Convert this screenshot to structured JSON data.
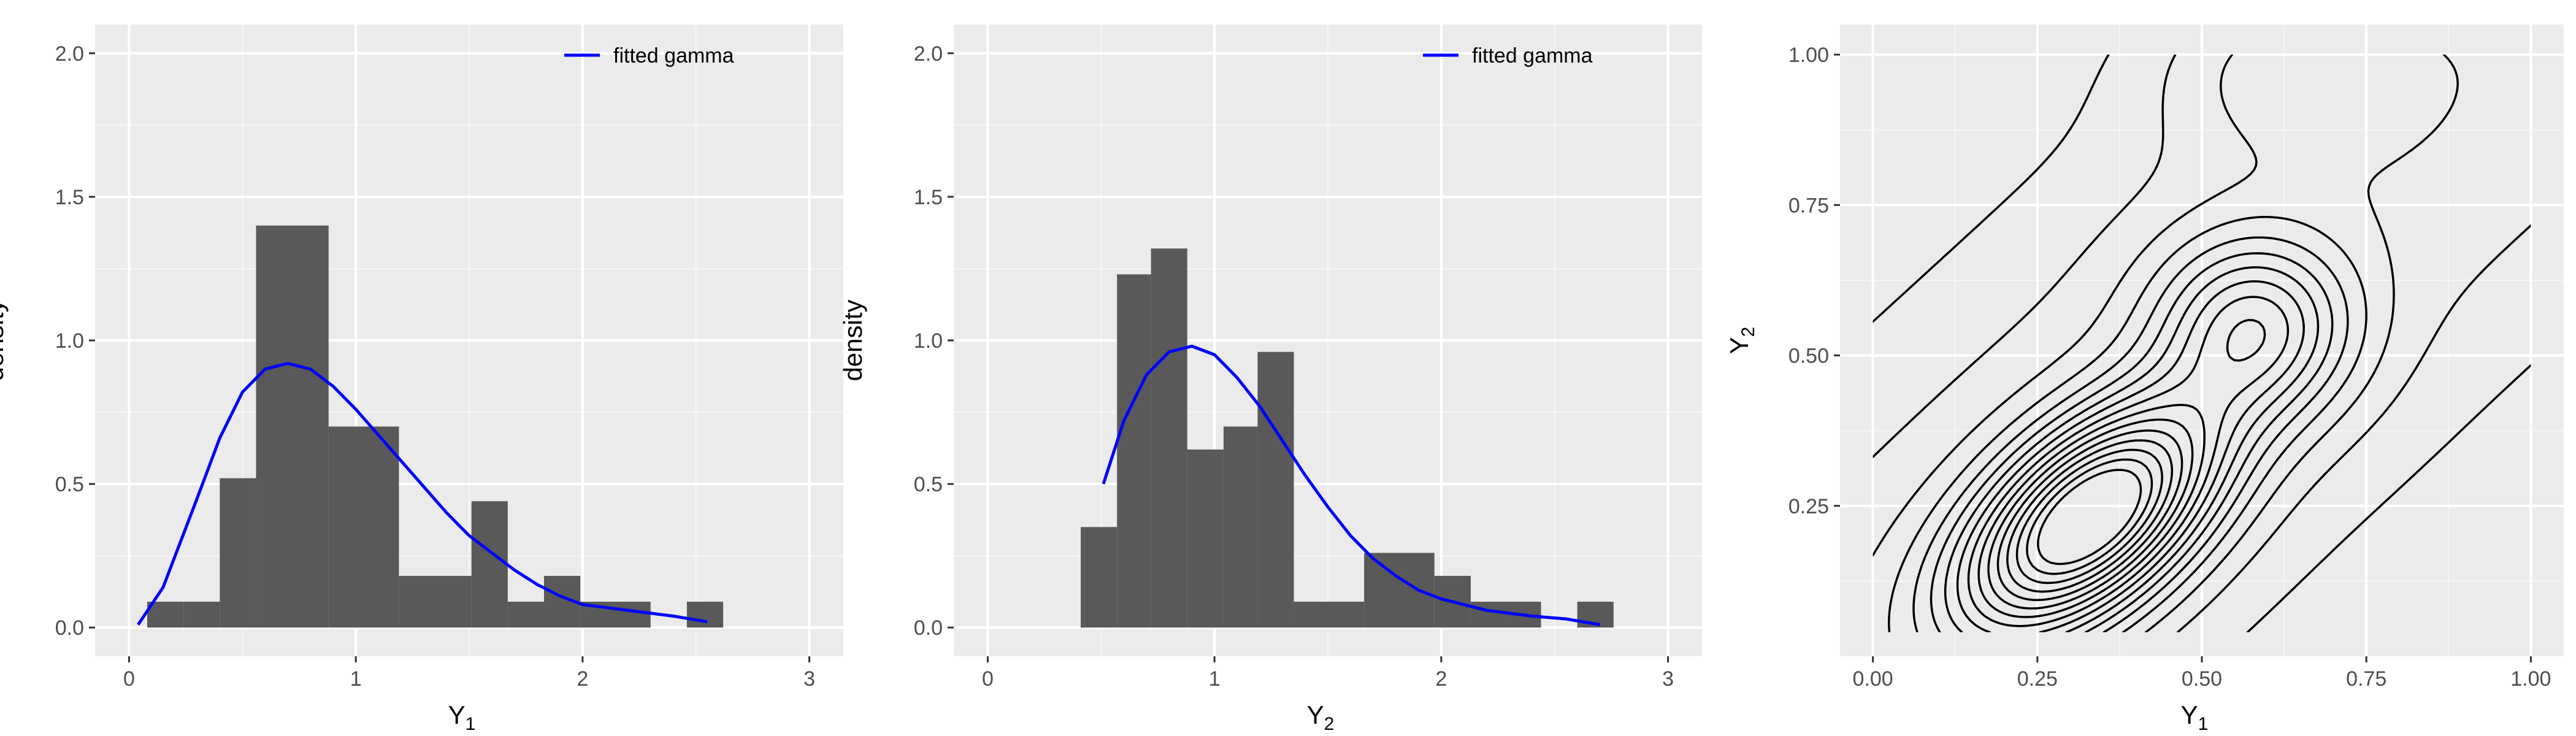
{
  "chart_data": [
    {
      "type": "bar",
      "panel": "left",
      "xlabel_base": "Y",
      "xlabel_sub": "1",
      "ylabel": "density",
      "xlim": [
        -0.15,
        3.15
      ],
      "ylim": [
        -0.1,
        2.1
      ],
      "x_ticks": [
        0,
        1,
        2,
        3
      ],
      "y_ticks": [
        0.0,
        0.5,
        1.0,
        1.5,
        2.0
      ],
      "y_tick_labels": [
        "0.0",
        "0.5",
        "1.0",
        "1.5",
        "2.0"
      ],
      "legend": {
        "label": "fitted gamma",
        "placement": "top-right",
        "color": "#0000ff"
      },
      "bar_color": "#595959",
      "histogram": [
        {
          "x0": 0.08,
          "x1": 0.24,
          "density": 0.09
        },
        {
          "x0": 0.24,
          "x1": 0.4,
          "density": 0.09
        },
        {
          "x0": 0.4,
          "x1": 0.56,
          "density": 0.52
        },
        {
          "x0": 0.56,
          "x1": 0.88,
          "density": 1.4
        },
        {
          "x0": 0.88,
          "x1": 1.19,
          "density": 0.7
        },
        {
          "x0": 1.19,
          "x1": 1.51,
          "density": 0.18
        },
        {
          "x0": 1.51,
          "x1": 1.67,
          "density": 0.44
        },
        {
          "x0": 1.67,
          "x1": 1.83,
          "density": 0.09
        },
        {
          "x0": 1.83,
          "x1": 1.99,
          "density": 0.18
        },
        {
          "x0": 1.99,
          "x1": 2.3,
          "density": 0.09
        },
        {
          "x0": 2.46,
          "x1": 2.62,
          "density": 0.09
        }
      ],
      "fitted_curve": [
        [
          0.04,
          0.01
        ],
        [
          0.15,
          0.14
        ],
        [
          0.3,
          0.45
        ],
        [
          0.4,
          0.66
        ],
        [
          0.5,
          0.82
        ],
        [
          0.6,
          0.9
        ],
        [
          0.7,
          0.92
        ],
        [
          0.8,
          0.9
        ],
        [
          0.9,
          0.84
        ],
        [
          1.0,
          0.76
        ],
        [
          1.1,
          0.67
        ],
        [
          1.2,
          0.58
        ],
        [
          1.3,
          0.49
        ],
        [
          1.4,
          0.4
        ],
        [
          1.5,
          0.32
        ],
        [
          1.6,
          0.26
        ],
        [
          1.7,
          0.2
        ],
        [
          1.8,
          0.15
        ],
        [
          1.9,
          0.11
        ],
        [
          2.0,
          0.08
        ],
        [
          2.2,
          0.06
        ],
        [
          2.4,
          0.04
        ],
        [
          2.55,
          0.02
        ]
      ]
    },
    {
      "type": "bar",
      "panel": "middle",
      "xlabel_base": "Y",
      "xlabel_sub": "2",
      "ylabel": "density",
      "xlim": [
        -0.15,
        3.15
      ],
      "ylim": [
        -0.1,
        2.1
      ],
      "x_ticks": [
        0,
        1,
        2,
        3
      ],
      "y_ticks": [
        0.0,
        0.5,
        1.0,
        1.5,
        2.0
      ],
      "y_tick_labels": [
        "0.0",
        "0.5",
        "1.0",
        "1.5",
        "2.0"
      ],
      "legend": {
        "label": "fitted gamma",
        "placement": "top-right",
        "color": "#0000ff"
      },
      "bar_color": "#595959",
      "histogram": [
        {
          "x0": 0.41,
          "x1": 0.57,
          "density": 0.35
        },
        {
          "x0": 0.57,
          "x1": 0.72,
          "density": 1.23
        },
        {
          "x0": 0.72,
          "x1": 0.88,
          "density": 1.32
        },
        {
          "x0": 0.88,
          "x1": 1.04,
          "density": 0.62
        },
        {
          "x0": 1.04,
          "x1": 1.19,
          "density": 0.7
        },
        {
          "x0": 1.19,
          "x1": 1.35,
          "density": 0.96
        },
        {
          "x0": 1.35,
          "x1": 1.66,
          "density": 0.09
        },
        {
          "x0": 1.66,
          "x1": 1.97,
          "density": 0.26
        },
        {
          "x0": 1.97,
          "x1": 2.13,
          "density": 0.18
        },
        {
          "x0": 2.13,
          "x1": 2.44,
          "density": 0.09
        },
        {
          "x0": 2.6,
          "x1": 2.76,
          "density": 0.09
        }
      ],
      "fitted_curve": [
        [
          0.51,
          0.5
        ],
        [
          0.6,
          0.72
        ],
        [
          0.7,
          0.88
        ],
        [
          0.8,
          0.96
        ],
        [
          0.9,
          0.98
        ],
        [
          1.0,
          0.95
        ],
        [
          1.1,
          0.87
        ],
        [
          1.2,
          0.77
        ],
        [
          1.3,
          0.65
        ],
        [
          1.4,
          0.53
        ],
        [
          1.5,
          0.42
        ],
        [
          1.6,
          0.32
        ],
        [
          1.7,
          0.24
        ],
        [
          1.8,
          0.18
        ],
        [
          1.9,
          0.13
        ],
        [
          2.0,
          0.1
        ],
        [
          2.2,
          0.06
        ],
        [
          2.4,
          0.04
        ],
        [
          2.55,
          0.03
        ],
        [
          2.7,
          0.01
        ]
      ]
    },
    {
      "type": "contour",
      "panel": "right",
      "xlabel_base": "Y",
      "xlabel_sub": "1",
      "ylabel_base": "Y",
      "ylabel_sub": "2",
      "xlim": [
        -0.05,
        1.05
      ],
      "ylim": [
        0.0,
        1.05
      ],
      "x_ticks": [
        0.0,
        0.25,
        0.5,
        0.75,
        1.0
      ],
      "x_tick_labels": [
        "0.00",
        "0.25",
        "0.50",
        "0.75",
        "1.00"
      ],
      "y_ticks": [
        0.25,
        0.5,
        0.75,
        1.0
      ],
      "y_tick_labels": [
        "0.25",
        "0.50",
        "0.75",
        "1.00"
      ],
      "contour_levels": 16,
      "density_modes": [
        {
          "x": 0.33,
          "y": 0.23,
          "note": "main peak"
        },
        {
          "x": 0.58,
          "y": 0.55,
          "note": "secondary peak"
        }
      ]
    }
  ]
}
